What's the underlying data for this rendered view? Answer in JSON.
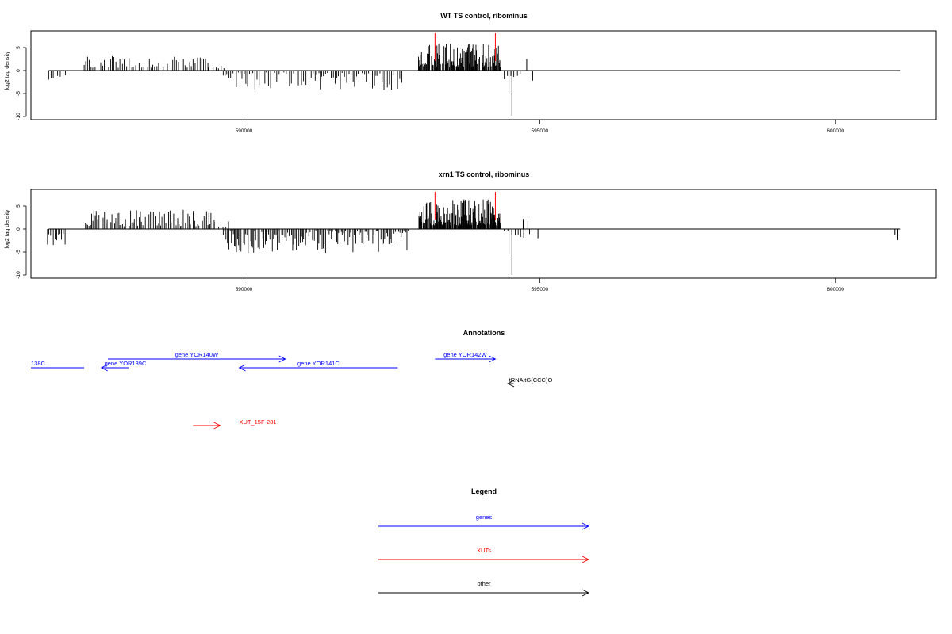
{
  "colors": {
    "gene": "#0000ff",
    "xut": "#ff0000",
    "other": "#000000",
    "marker": "#ff0000"
  },
  "chart_data": [
    {
      "type": "bar",
      "title": "WT TS control, ribominus",
      "ylabel": "log2 tag density",
      "xlim": [
        586400,
        601700
      ],
      "ylim": [
        -10.3,
        8.5
      ],
      "xticks": [
        590000,
        595000,
        600000
      ],
      "xtick_labels": [
        "590000",
        "595000",
        "600000"
      ],
      "yticks": [
        -10,
        -5,
        0,
        5
      ],
      "ytick_labels": [
        "-10",
        "-5",
        "0",
        "5"
      ],
      "markers_x": [
        593230,
        594250
      ],
      "segments": [
        {
          "start": 586700,
          "end": 587000,
          "sign": -1,
          "min": 0.8,
          "max": 2.0,
          "step": 40
        },
        {
          "start": 587300,
          "end": 589400,
          "sign": 1,
          "min": 0.6,
          "max": 3.2,
          "step": 35
        },
        {
          "start": 589400,
          "end": 589700,
          "sign": 1,
          "min": 0.4,
          "max": 1.3,
          "step": 40
        },
        {
          "start": 589650,
          "end": 592700,
          "sign": -1,
          "min": 0.4,
          "max": 4.3,
          "step": 32
        },
        {
          "start": 592950,
          "end": 594350,
          "sign": 1,
          "min": 0.8,
          "max": 6.0,
          "step": 10
        },
        {
          "start": 594400,
          "end": 594700,
          "sign": -1,
          "min": 0.5,
          "max": 2.3,
          "step": 60
        }
      ],
      "spikes": [
        {
          "x": 594480,
          "y": -5.0
        },
        {
          "x": 594530,
          "y": -10.0
        },
        {
          "x": 594780,
          "y": 2.5
        },
        {
          "x": 594880,
          "y": -2.2
        }
      ]
    },
    {
      "type": "bar",
      "title": "xrn1 TS control, ribominus",
      "ylabel": "log2 tag density",
      "xlim": [
        586400,
        601700
      ],
      "ylim": [
        -10.3,
        8.5
      ],
      "xticks": [
        590000,
        595000,
        600000
      ],
      "xtick_labels": [
        "590000",
        "595000",
        "600000"
      ],
      "yticks": [
        -10,
        -5,
        0,
        5
      ],
      "ytick_labels": [
        "-10",
        "-5",
        "0",
        "5"
      ],
      "markers_x": [
        593230,
        594250
      ],
      "segments": [
        {
          "start": 586680,
          "end": 587000,
          "sign": -1,
          "min": 1.0,
          "max": 3.5,
          "step": 25
        },
        {
          "start": 587300,
          "end": 589500,
          "sign": 1,
          "min": 0.6,
          "max": 4.3,
          "step": 22
        },
        {
          "start": 589500,
          "end": 589750,
          "sign": 1,
          "min": 0.4,
          "max": 2.0,
          "step": 40
        },
        {
          "start": 589650,
          "end": 592800,
          "sign": -1,
          "min": 0.4,
          "max": 5.3,
          "step": 20
        },
        {
          "start": 592950,
          "end": 594350,
          "sign": 1,
          "min": 0.8,
          "max": 6.5,
          "step": 8
        },
        {
          "start": 594400,
          "end": 594900,
          "sign": -1,
          "min": 0.5,
          "max": 2.2,
          "step": 55
        }
      ],
      "spikes": [
        {
          "x": 594480,
          "y": -5.5
        },
        {
          "x": 594530,
          "y": -10.0
        },
        {
          "x": 594720,
          "y": 2.2
        },
        {
          "x": 594800,
          "y": 1.8
        },
        {
          "x": 594970,
          "y": -2.0
        },
        {
          "x": 601000,
          "y": -1.2
        },
        {
          "x": 601050,
          "y": -2.4
        }
      ]
    }
  ],
  "annotations": {
    "title": "Annotations",
    "items": [
      {
        "label": "138C",
        "kind": "gene",
        "start": 586400,
        "end": 587300,
        "direction": "none",
        "row": 2
      },
      {
        "label": "gene YOR139C",
        "kind": "gene",
        "start": 587590,
        "end": 588050,
        "direction": "left",
        "row": 2
      },
      {
        "label": "gene YOR140W",
        "kind": "gene",
        "start": 587700,
        "end": 590700,
        "direction": "right",
        "row": 1
      },
      {
        "label": "gene YOR141C",
        "kind": "gene",
        "start": 589920,
        "end": 592600,
        "direction": "left",
        "row": 2
      },
      {
        "label": "gene YOR142W",
        "kind": "gene",
        "start": 593230,
        "end": 594250,
        "direction": "right",
        "row": 1
      },
      {
        "label": "tRNA tG(CCC)O",
        "kind": "other",
        "start": 594460,
        "end": 594560,
        "direction": "left",
        "row": 3
      },
      {
        "label": "XUT_15F-281",
        "kind": "xut",
        "start": 589140,
        "end": 589600,
        "direction": "right",
        "row": 6
      }
    ]
  },
  "legend": {
    "title": "Legend",
    "items": [
      {
        "label": "genes",
        "kind": "gene"
      },
      {
        "label": "XUTs",
        "kind": "xut"
      },
      {
        "label": "other",
        "kind": "other"
      }
    ]
  }
}
